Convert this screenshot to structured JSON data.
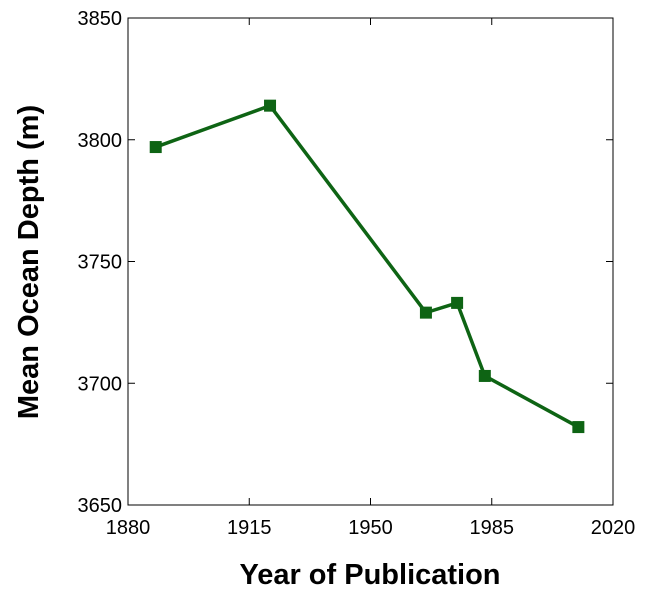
{
  "chart_data": {
    "type": "line",
    "title": "",
    "xlabel": "Year of Publication",
    "ylabel": "Mean Ocean Depth (m)",
    "xlim": [
      1880,
      2020
    ],
    "ylim": [
      3650,
      3850
    ],
    "xticks": [
      1880,
      1915,
      1950,
      1985,
      2020
    ],
    "yticks": [
      3650,
      3700,
      3750,
      3800,
      3850
    ],
    "grid": false,
    "series": [
      {
        "color": "#0e6414",
        "marker": "square",
        "x": [
          1888,
          1921,
          1966,
          1975,
          1983,
          2010
        ],
        "y": [
          3797,
          3814,
          3729,
          3733,
          3703,
          3682
        ]
      }
    ]
  }
}
